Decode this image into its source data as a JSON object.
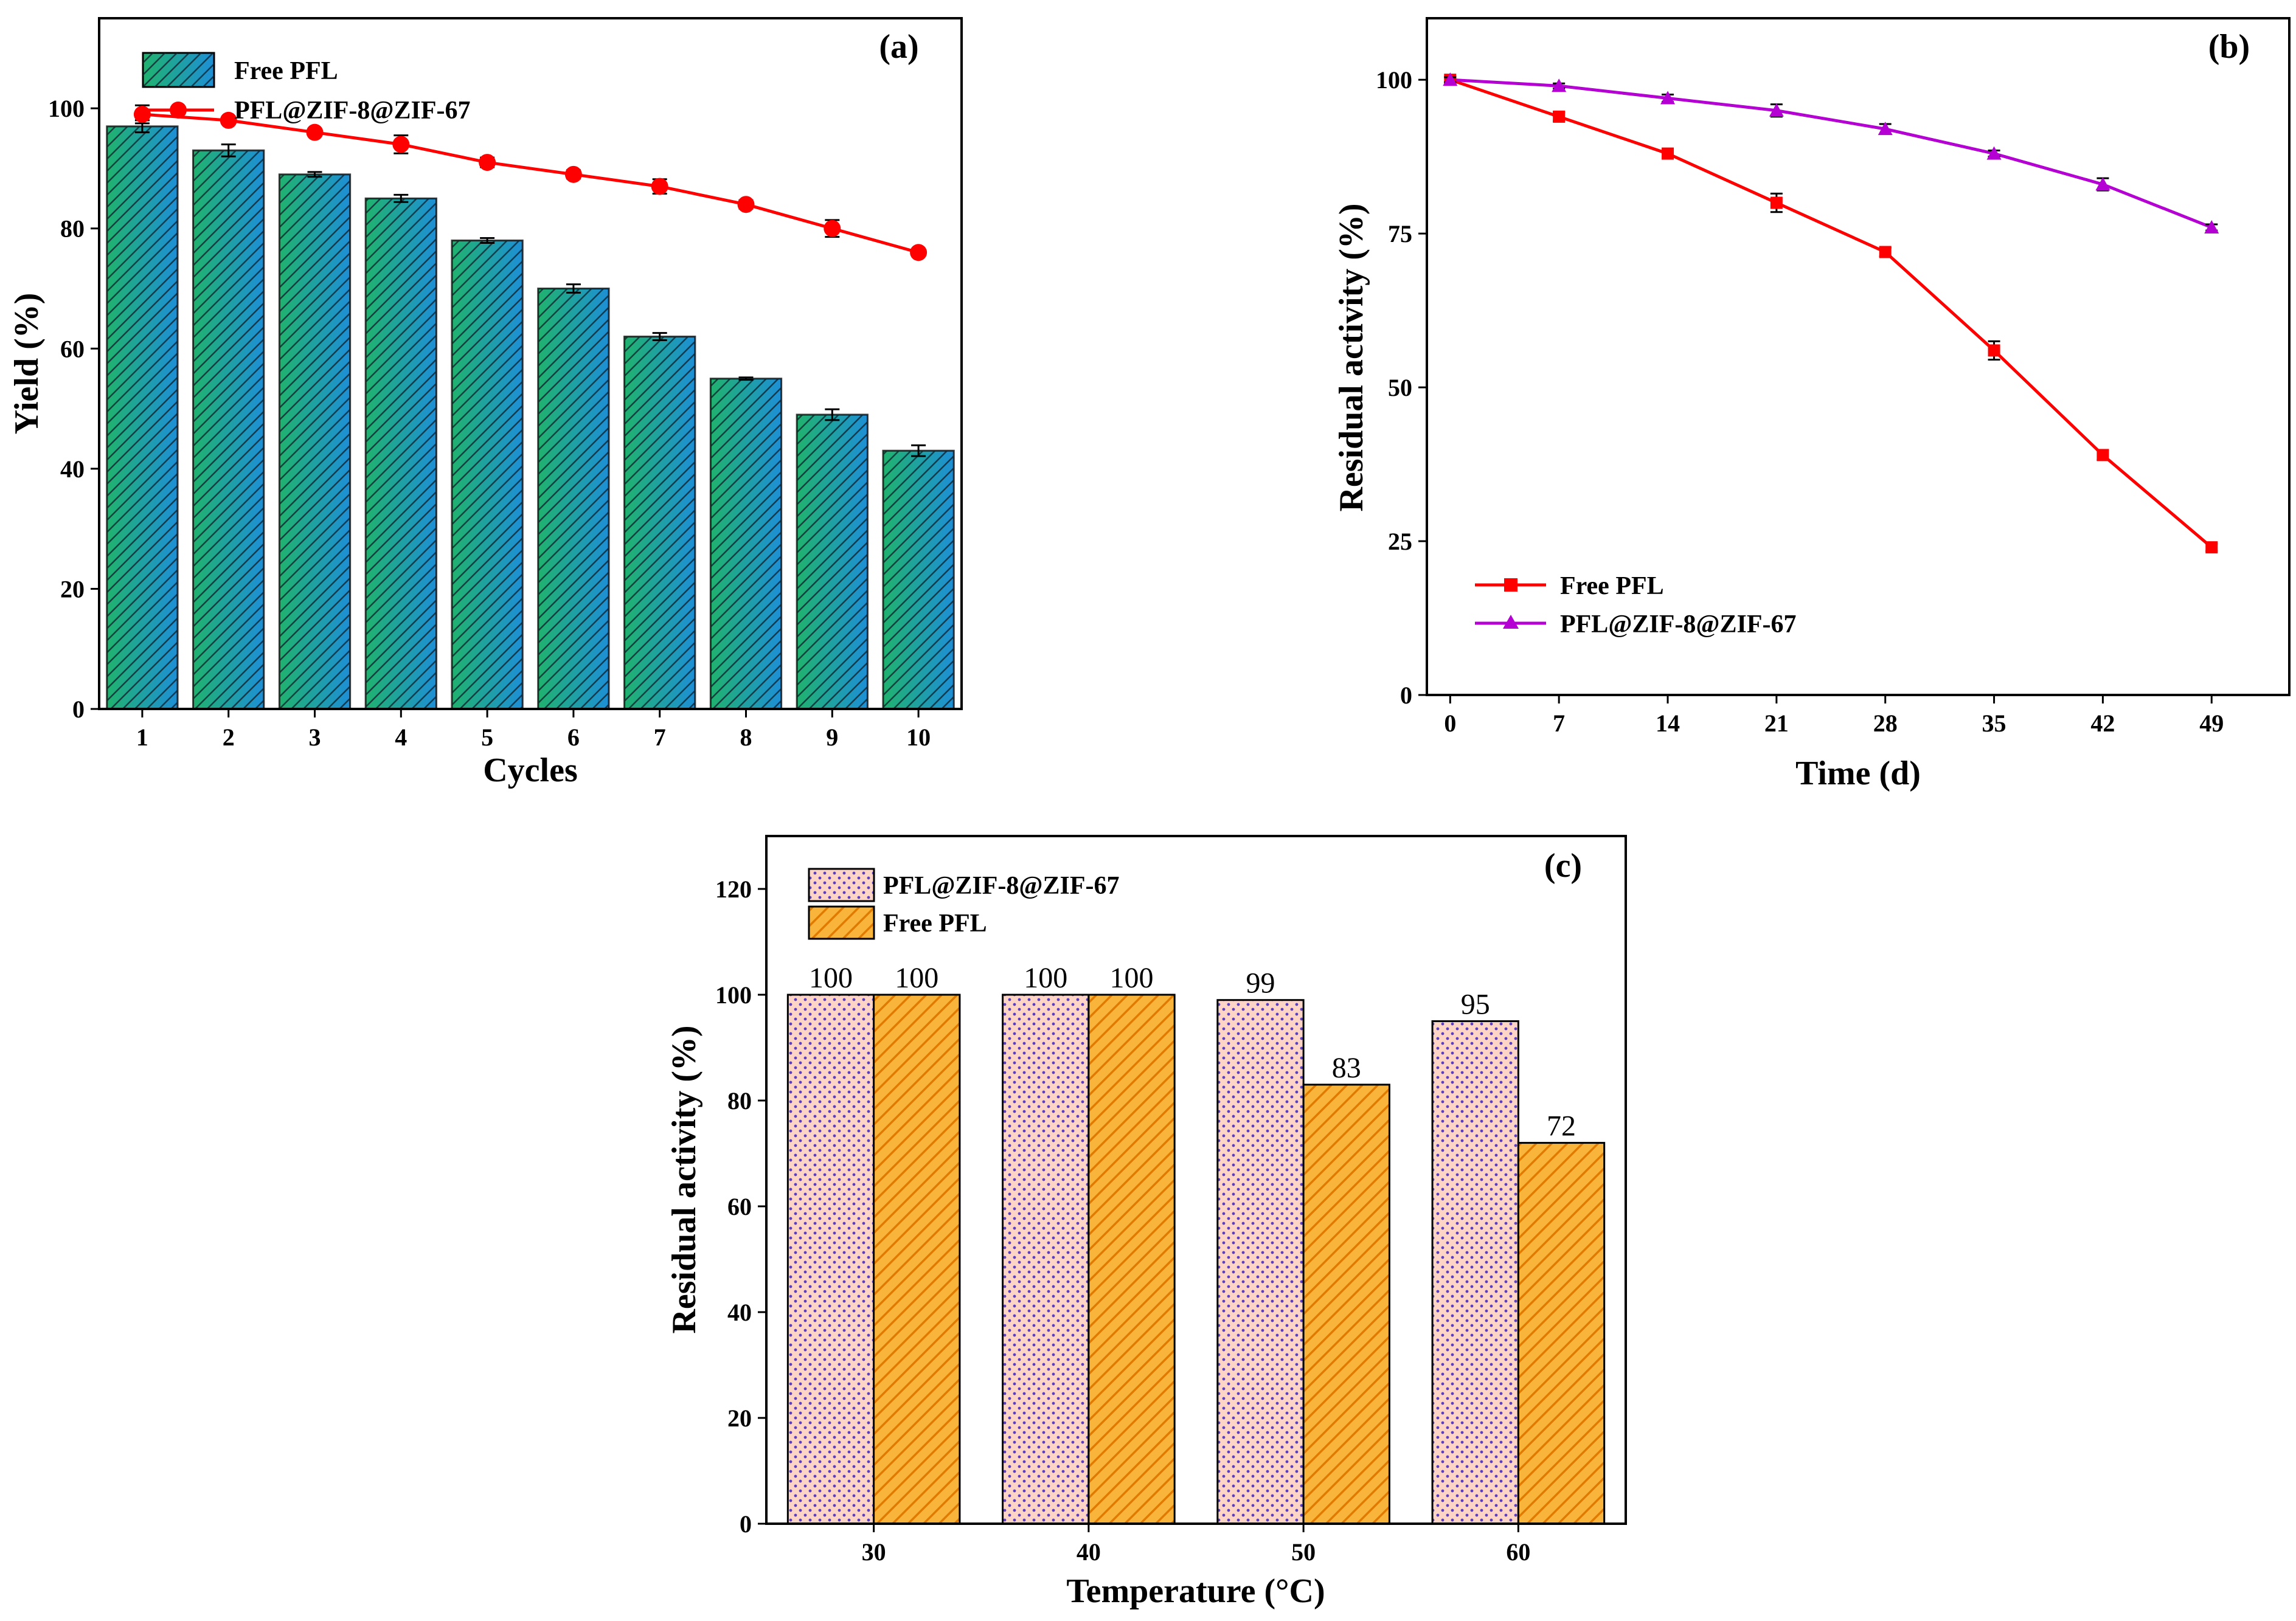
{
  "chart_data": [
    {
      "id": "a",
      "panel_label": "(a)",
      "type": "bar+line",
      "xlabel": "Cycles",
      "ylabel": "Yield (%)",
      "categories": [
        "1",
        "2",
        "3",
        "4",
        "5",
        "6",
        "7",
        "8",
        "9",
        "10"
      ],
      "ylim": [
        0,
        115
      ],
      "yticks": [
        0,
        20,
        40,
        60,
        80,
        100
      ],
      "legend_position": "top-left",
      "series": [
        {
          "name": "Free PFL",
          "kind": "bar",
          "color": "#1f8fa8",
          "values": [
            97,
            93,
            89,
            85,
            78,
            70,
            62,
            55,
            49,
            43
          ],
          "errors": [
            1.0,
            1.0,
            0.4,
            0.6,
            0.4,
            0.7,
            0.6,
            0.2,
            0.9,
            0.9
          ]
        },
        {
          "name": "PFL@ZIF-8@ZIF-67",
          "kind": "line",
          "color": "#ff0000",
          "marker": "circle",
          "values": [
            99,
            98,
            96,
            94,
            91,
            89,
            87,
            84,
            80,
            76
          ],
          "errors": [
            1.5,
            0.6,
            0.6,
            1.5,
            0.8,
            0.7,
            1.2,
            0.7,
            1.4,
            0.5
          ]
        }
      ]
    },
    {
      "id": "b",
      "panel_label": "(b)",
      "type": "line",
      "xlabel": "Time (d)",
      "ylabel": "Residual activity (%)",
      "x": [
        0,
        7,
        14,
        21,
        28,
        35,
        42,
        49
      ],
      "xlim": [
        -1.5,
        54
      ],
      "ylim": [
        0,
        110
      ],
      "yticks": [
        0,
        25,
        50,
        75,
        100
      ],
      "legend_position": "bottom-left",
      "series": [
        {
          "name": "Free PFL",
          "color": "#ff0000",
          "marker": "square",
          "values": [
            100,
            94,
            88,
            80,
            72,
            56,
            39,
            24
          ],
          "errors": [
            0.5,
            0.7,
            0.6,
            1.5,
            0.7,
            1.5,
            0.8,
            0.6
          ]
        },
        {
          "name": "PFL@ZIF-8@ZIF-67",
          "color": "#b400d2",
          "marker": "triangle",
          "values": [
            100,
            99,
            97,
            95,
            92,
            88,
            83,
            76
          ],
          "errors": [
            0.4,
            0.4,
            0.6,
            1.0,
            0.8,
            0.5,
            1.0,
            0.5
          ]
        }
      ]
    },
    {
      "id": "c",
      "panel_label": "(c)",
      "type": "bar",
      "xlabel": "Temperature (°C)",
      "ylabel": "Residual activity (%)",
      "categories": [
        "30",
        "40",
        "50",
        "60"
      ],
      "ylim": [
        0,
        130
      ],
      "yticks": [
        0,
        20,
        40,
        60,
        80,
        100,
        120
      ],
      "legend_position": "top-left",
      "series": [
        {
          "name": "PFL@ZIF-8@ZIF-67",
          "pattern": "dots",
          "color": "#fbd3c4",
          "dot_color": "#5b3fbf",
          "values": [
            100,
            100,
            99,
            95
          ],
          "labels": [
            "100",
            "100",
            "99",
            "95"
          ]
        },
        {
          "name": "Free PFL",
          "pattern": "hatch",
          "color": "#f7a72a",
          "hatch_color": "#e07800",
          "values": [
            100,
            100,
            83,
            72
          ],
          "labels": [
            "100",
            "100",
            "83",
            "72"
          ]
        }
      ]
    }
  ]
}
